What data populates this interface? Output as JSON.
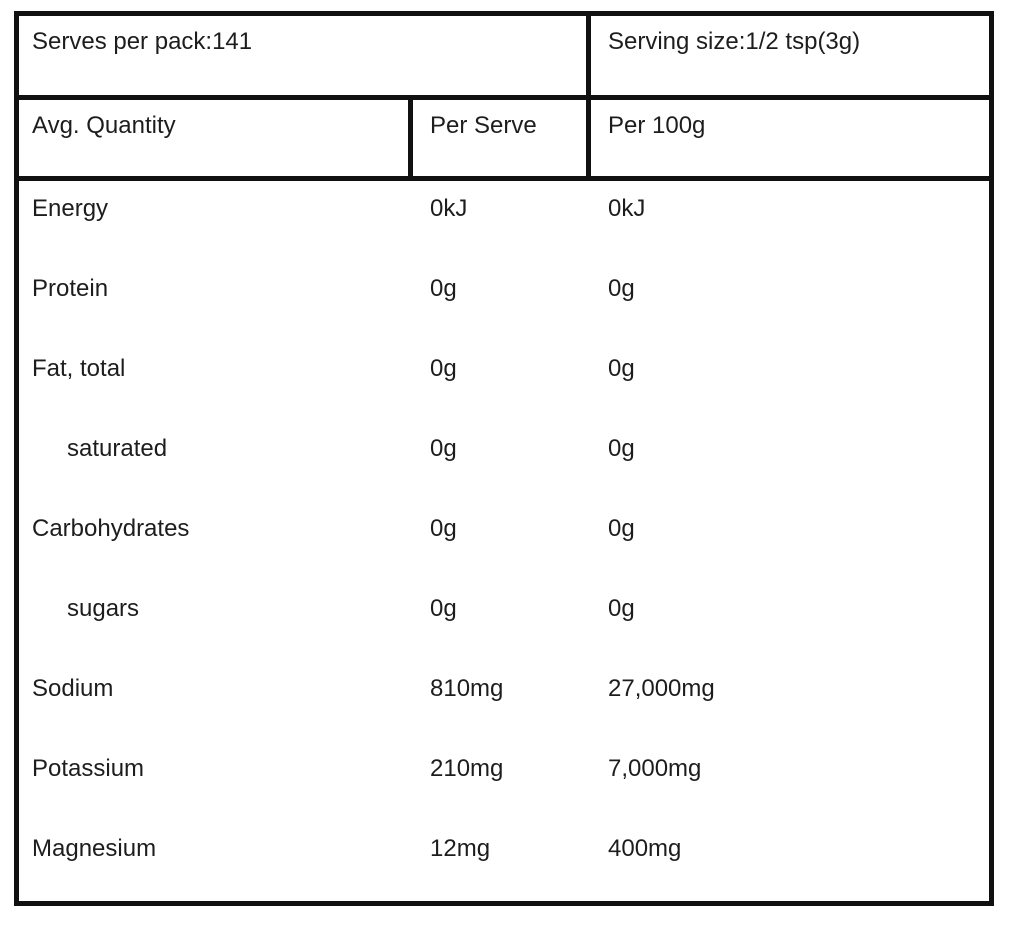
{
  "table": {
    "pack_info": {
      "serves_per_pack": "Serves per pack:141",
      "serving_size": "Serving size:1/2 tsp(3g)"
    },
    "column_headers": {
      "avg_quantity": "Avg. Quantity",
      "per_serve": "Per Serve",
      "per_100g": "Per 100g"
    },
    "rows": [
      {
        "label": "Energy",
        "indent": false,
        "per_serve": "0kJ",
        "per_100g": "0kJ"
      },
      {
        "label": "Protein",
        "indent": false,
        "per_serve": "0g",
        "per_100g": "0g"
      },
      {
        "label": "Fat, total",
        "indent": false,
        "per_serve": "0g",
        "per_100g": "0g"
      },
      {
        "label": "saturated",
        "indent": true,
        "per_serve": "0g",
        "per_100g": "0g"
      },
      {
        "label": "Carbohydrates",
        "indent": false,
        "per_serve": "0g",
        "per_100g": "0g"
      },
      {
        "label": "sugars",
        "indent": true,
        "per_serve": "0g",
        "per_100g": "0g"
      },
      {
        "label": "Sodium",
        "indent": false,
        "per_serve": "810mg",
        "per_100g": "27,000mg"
      },
      {
        "label": "Potassium",
        "indent": false,
        "per_serve": "210mg",
        "per_100g": "7,000mg"
      },
      {
        "label": "Magnesium",
        "indent": false,
        "per_serve": "12mg",
        "per_100g": "400mg"
      }
    ],
    "colors": {
      "border": "#111111",
      "text": "#1d1d1d",
      "background": "#ffffff"
    }
  }
}
